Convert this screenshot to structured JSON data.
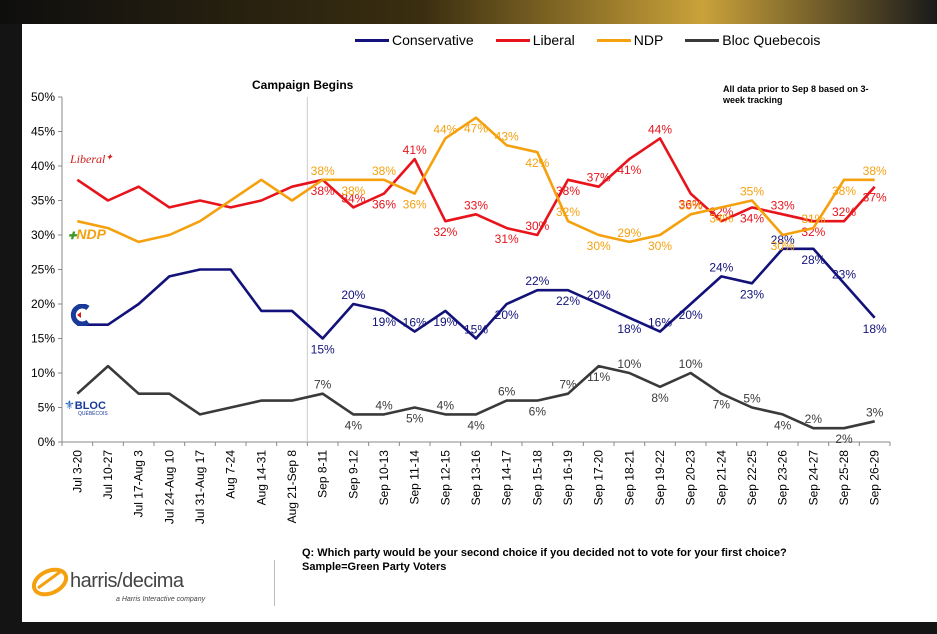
{
  "annotations": {
    "campaign": "Campaign Begins",
    "note": "All data prior to Sep 8 based on 3-week tracking"
  },
  "footer": {
    "question": "Q: Which party would be your second choice if you decided not to vote for your first choice?",
    "sample": "Sample=Green Party Voters",
    "logo_name": "harris/decima",
    "logo_tagline": "a Harris Interactive company"
  },
  "party_logos": {
    "liberal": "Liberal",
    "ndp": "NDP",
    "bloc": "BLOC",
    "bloc_sub": "QUÉBÉCOIS"
  },
  "colors": {
    "conservative": "#12127a",
    "liberal": "#e8141c",
    "ndp": "#f5a10f",
    "bloc": "#3a3a3a"
  },
  "chart_data": {
    "type": "line",
    "x": [
      "Jul 3-20",
      "Jul 10-27",
      "Jul 17-Aug 3",
      "Jul 24-Aug 10",
      "Jul 31-Aug 17",
      "Aug 7-24",
      "Aug 14-31",
      "Aug 21-Sep 8",
      "Sep 8-11",
      "Sep 9-12",
      "Sep 10-13",
      "Sep 11-14",
      "Sep 12-15",
      "Sep 13-16",
      "Sep 14-17",
      "Sep 15-18",
      "Sep 16-19",
      "Sep 17-20",
      "Sep 18-21",
      "Sep 19-22",
      "Sep 20-23",
      "Sep 21-24",
      "Sep 22-25",
      "Sep 23-26",
      "Sep 24-27",
      "Sep 25-28",
      "Sep 26-29"
    ],
    "ylim": [
      0,
      50
    ],
    "yticks": [
      "0%",
      "5%",
      "10%",
      "15%",
      "20%",
      "25%",
      "30%",
      "35%",
      "40%",
      "45%",
      "50%"
    ],
    "label_start_index": 8,
    "series": [
      {
        "name": "Conservative",
        "key": "conservative",
        "values": [
          17,
          17,
          20,
          24,
          25,
          25,
          19,
          19,
          15,
          20,
          19,
          16,
          19,
          15,
          20,
          22,
          22,
          20,
          18,
          16,
          20,
          24,
          23,
          28,
          28,
          23,
          18
        ]
      },
      {
        "name": "Liberal",
        "key": "liberal",
        "values": [
          38,
          35,
          37,
          34,
          35,
          34,
          35,
          37,
          38,
          34,
          36,
          41,
          32,
          33,
          31,
          30,
          38,
          37,
          41,
          44,
          36,
          32,
          34,
          33,
          32,
          32,
          37
        ]
      },
      {
        "name": "NDP",
        "key": "ndp",
        "values": [
          32,
          31,
          29,
          30,
          32,
          35,
          38,
          35,
          38,
          38,
          38,
          36,
          44,
          47,
          43,
          42,
          32,
          30,
          29,
          30,
          33,
          34,
          35,
          30,
          31,
          38,
          38
        ]
      },
      {
        "name": "Bloc Quebecois",
        "key": "bloc",
        "values": [
          7,
          11,
          7,
          7,
          4,
          5,
          6,
          6,
          7,
          4,
          4,
          5,
          4,
          4,
          6,
          6,
          7,
          11,
          10,
          8,
          10,
          7,
          5,
          4,
          2,
          2,
          3
        ]
      }
    ]
  }
}
